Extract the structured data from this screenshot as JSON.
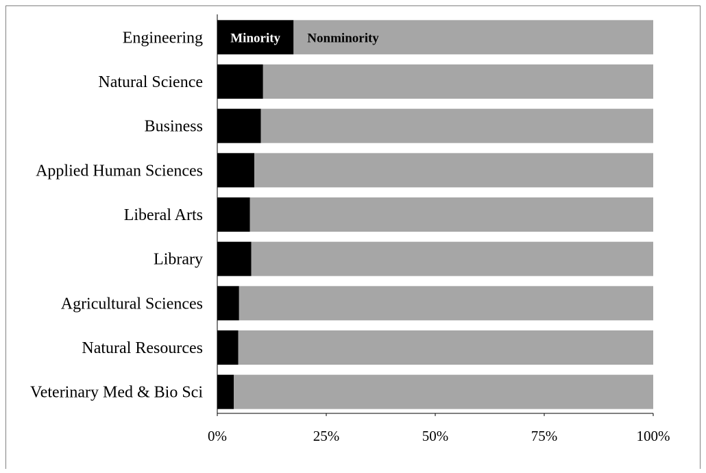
{
  "colors": {
    "minority": "#000000",
    "nonminority": "#a6a6a6",
    "frame": "#808080"
  },
  "chart_data": {
    "type": "bar",
    "orientation": "horizontal",
    "stacked": true,
    "percent": true,
    "categories": [
      "Engineering",
      "Natural Science",
      "Business",
      "Applied Human Sciences",
      "Liberal Arts",
      "Library",
      "Agricultural Sciences",
      "Natural Resources",
      "Veterinary Med & Bio Sci"
    ],
    "series": [
      {
        "name": "Minority",
        "color": "#000000",
        "values": [
          17.5,
          10.5,
          10.0,
          8.5,
          7.5,
          7.8,
          5.0,
          4.8,
          3.8
        ]
      },
      {
        "name": "Nonminority",
        "color": "#a6a6a6",
        "values": [
          82.5,
          89.5,
          90.0,
          91.5,
          92.5,
          92.2,
          95.0,
          95.2,
          96.2
        ]
      }
    ],
    "xlim": [
      0,
      100
    ],
    "x_ticks": [
      "0%",
      "25%",
      "50%",
      "75%",
      "100%"
    ],
    "grid": false,
    "legend": "labels inside first bar"
  }
}
